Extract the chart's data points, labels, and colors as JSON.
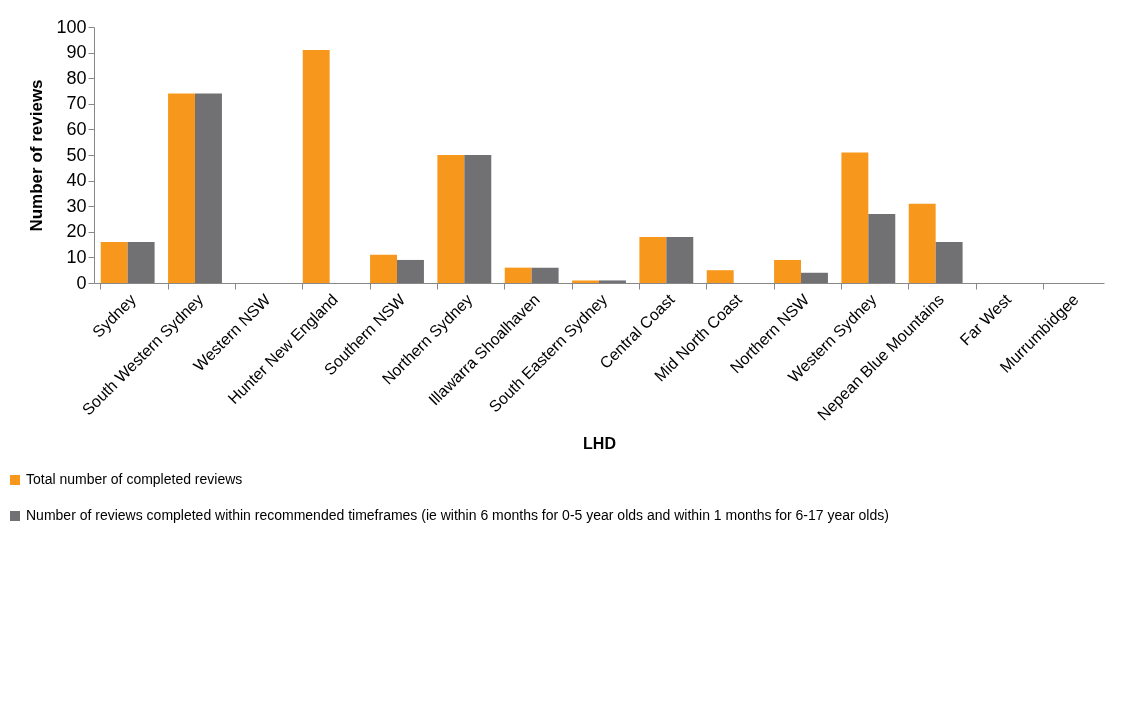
{
  "chart_data": {
    "type": "bar",
    "xlabel": "LHD",
    "ylabel": "Number of reviews",
    "categories": [
      "Sydney",
      "South Western Sydney",
      "Western NSW",
      "Hunter New England",
      "Southern NSW",
      "Northern Sydney",
      "Illawarra Shoalhaven",
      "South Eastern Sydney",
      "Central Coast",
      "Mid North Coast",
      "Northern NSW",
      "Western Sydney",
      "Nepean Blue Mountains",
      "Far West",
      "Murrumbidgee"
    ],
    "series": [
      {
        "name": "Total number of completed reviews",
        "color": "#f7981d",
        "values": [
          16,
          74,
          0,
          91,
          11,
          50,
          6,
          1,
          18,
          5,
          9,
          51,
          31,
          0,
          0
        ]
      },
      {
        "name": "Number of reviews completed within recommended timeframes (ie within 6 months for 0-5 year olds and within 1 months for 6-17 year olds)",
        "color": "#717073",
        "values": [
          16,
          74,
          0,
          0,
          9,
          50,
          6,
          1,
          18,
          0,
          4,
          27,
          16,
          0,
          0
        ]
      }
    ],
    "ylim": [
      0,
      100
    ],
    "yticks": [
      0,
      10,
      20,
      30,
      40,
      50,
      60,
      70,
      80,
      90,
      100
    ],
    "grid": false,
    "legend": "bottom left"
  }
}
